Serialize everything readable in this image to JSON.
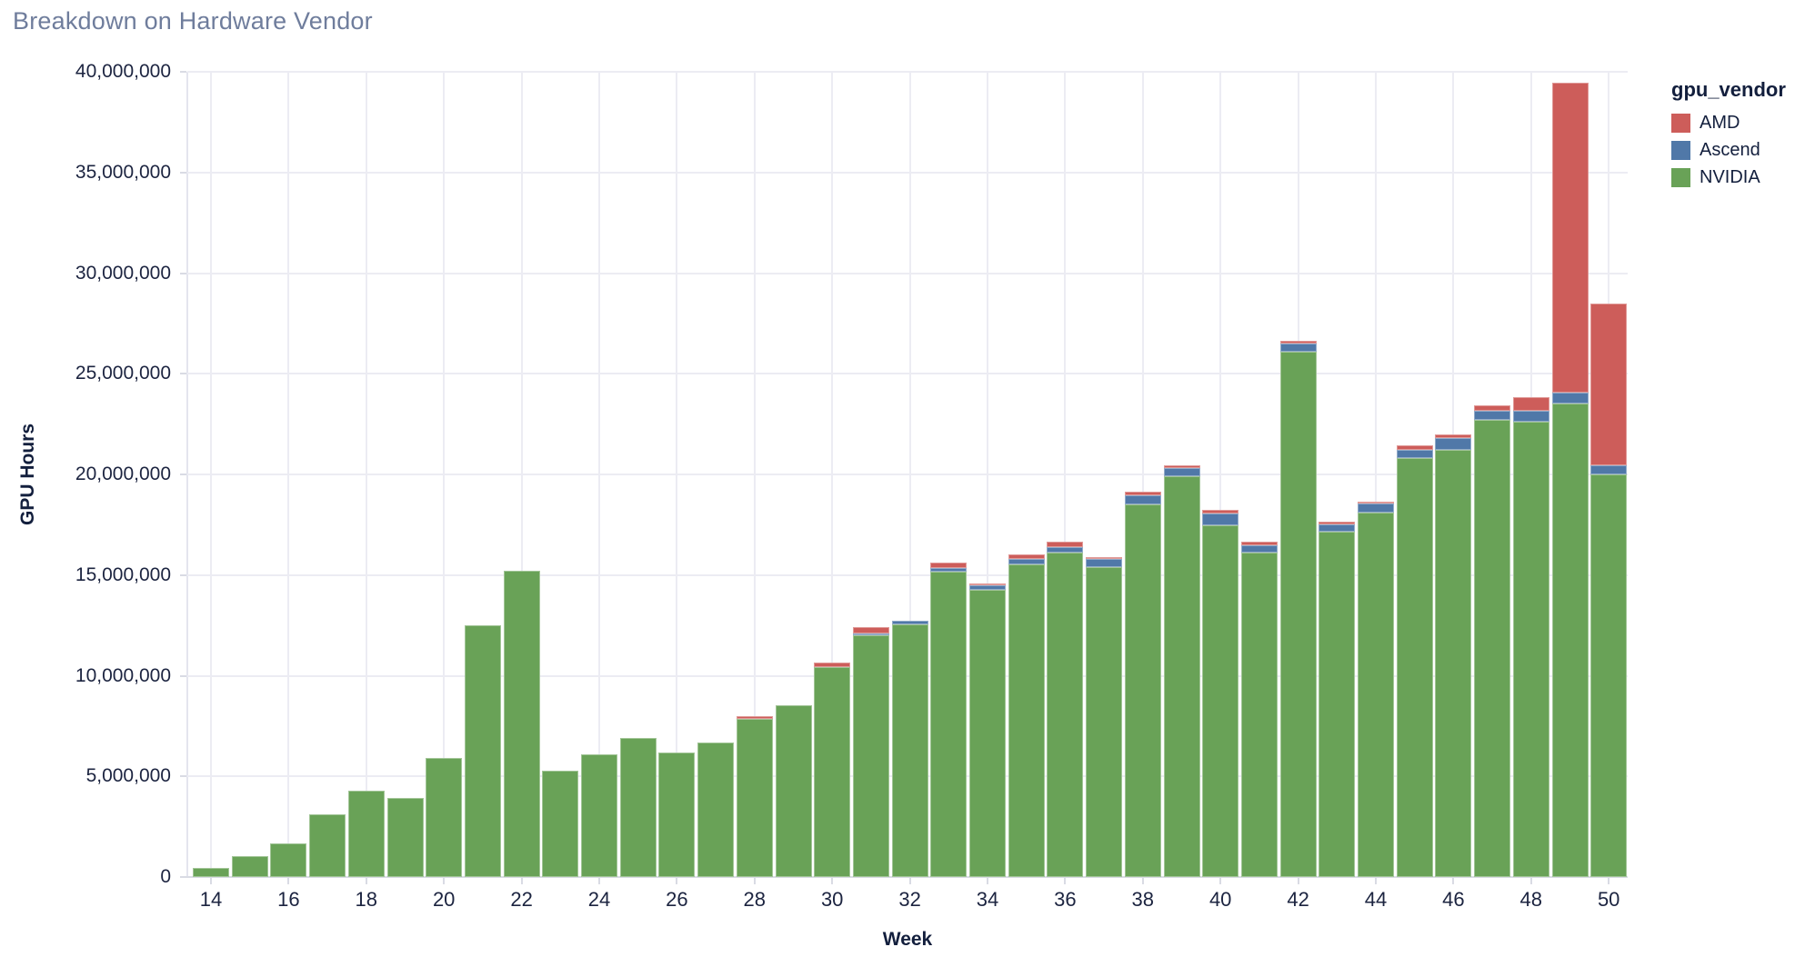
{
  "chart_data": {
    "type": "bar",
    "stacked": true,
    "title": "Breakdown on Hardware Vendor",
    "xlabel": "Week",
    "ylabel": "GPU Hours",
    "legend_title": "gpu_vendor",
    "legend_position": "top-right",
    "grid": true,
    "background": "#ffffff",
    "x": [
      14,
      15,
      16,
      17,
      18,
      19,
      20,
      21,
      22,
      23,
      24,
      25,
      26,
      27,
      28,
      29,
      30,
      31,
      32,
      33,
      34,
      35,
      36,
      37,
      38,
      39,
      40,
      41,
      42,
      43,
      44,
      45,
      46,
      47,
      48,
      49,
      50
    ],
    "x_tick_interval": 2,
    "ylim": [
      0,
      40000000
    ],
    "y_tick_step": 5000000,
    "stack_order_bottom_to_top": [
      "NVIDIA",
      "Ascend",
      "AMD"
    ],
    "series": [
      {
        "name": "AMD",
        "color": "#cd5d5a",
        "values": [
          0,
          0,
          0,
          0,
          0,
          0,
          0,
          0,
          0,
          0,
          0,
          0,
          0,
          0,
          150000,
          0,
          200000,
          300000,
          0,
          250000,
          100000,
          250000,
          250000,
          100000,
          200000,
          150000,
          200000,
          150000,
          150000,
          150000,
          100000,
          250000,
          200000,
          300000,
          700000,
          15400000,
          8050000
        ]
      },
      {
        "name": "Ascend",
        "color": "#5078a8",
        "values": [
          0,
          0,
          0,
          0,
          0,
          0,
          0,
          0,
          0,
          0,
          0,
          0,
          0,
          0,
          0,
          0,
          0,
          100000,
          200000,
          200000,
          250000,
          250000,
          300000,
          400000,
          450000,
          400000,
          600000,
          400000,
          400000,
          350000,
          450000,
          400000,
          600000,
          450000,
          550000,
          550000,
          450000
        ]
      },
      {
        "name": "NVIDIA",
        "color": "#69a257",
        "values": [
          450000,
          1050000,
          1650000,
          3100000,
          4300000,
          3950000,
          5900000,
          12500000,
          15200000,
          5300000,
          6100000,
          6900000,
          6200000,
          6700000,
          7850000,
          8550000,
          10450000,
          12000000,
          12550000,
          15150000,
          14250000,
          15550000,
          16100000,
          15400000,
          18500000,
          19900000,
          17450000,
          16100000,
          26100000,
          17150000,
          18100000,
          20800000,
          21200000,
          22700000,
          22600000,
          23500000,
          20000000
        ]
      }
    ]
  }
}
